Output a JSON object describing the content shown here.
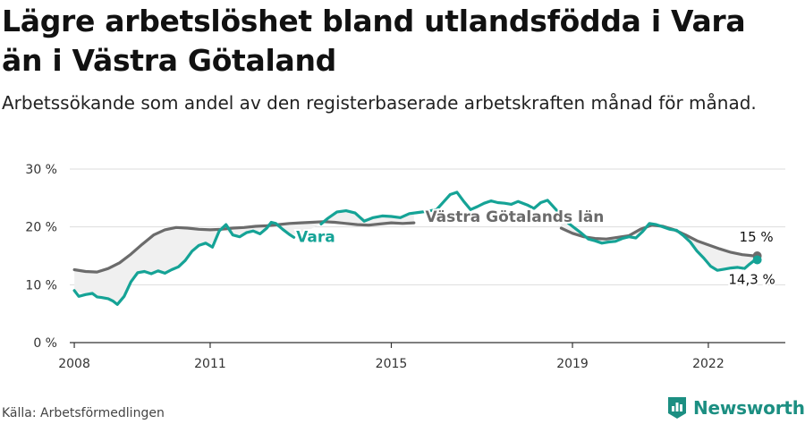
{
  "header": {
    "title": "Lägre arbetslöshet bland utlandsfödda i Vara än i Västra Götaland",
    "subtitle": "Arbetssökande som andel av den registerbaserade arbetskraften månad för månad."
  },
  "footer": {
    "source": "Källa: Arbetsförmedlingen",
    "brand": "Newsworthy"
  },
  "colors": {
    "vara": "#15a396",
    "vg": "#6b6b6b",
    "band": "#f0f0f0",
    "grid": "#dddddd",
    "axis": "#333333",
    "brand": "#1c8f82"
  },
  "icons": {
    "brand_logo": "newsworthy-logo-icon"
  },
  "chart_data": {
    "type": "line",
    "title": "Lägre arbetslöshet bland utlandsfödda i Vara än i Västra Götaland",
    "xlabel": "",
    "ylabel": "",
    "xlim": [
      2007.9,
      2023.7
    ],
    "ylim": [
      0,
      30
    ],
    "yticks": [
      0,
      10,
      20,
      30
    ],
    "ytick_labels": [
      "0 %",
      "10 %",
      "20 %",
      "30 %"
    ],
    "xticks": [
      2008,
      2011,
      2015,
      2019,
      2022
    ],
    "xtick_labels": [
      "2008",
      "2011",
      "2015",
      "2019",
      "2022"
    ],
    "grid": true,
    "shaded_between_series": true,
    "series": [
      {
        "name": "Västra Götalands län",
        "label": "Västra Götalands län",
        "end_label": "15 %",
        "points": [
          [
            2008.0,
            12.6
          ],
          [
            2008.25,
            12.3
          ],
          [
            2008.5,
            12.2
          ],
          [
            2008.75,
            12.8
          ],
          [
            2009.0,
            13.8
          ],
          [
            2009.25,
            15.3
          ],
          [
            2009.5,
            17.0
          ],
          [
            2009.75,
            18.6
          ],
          [
            2010.0,
            19.5
          ],
          [
            2010.25,
            19.9
          ],
          [
            2010.5,
            19.8
          ],
          [
            2010.75,
            19.6
          ],
          [
            2011.0,
            19.5
          ],
          [
            2011.25,
            19.6
          ],
          [
            2011.5,
            19.8
          ],
          [
            2011.75,
            19.9
          ],
          [
            2012.0,
            20.1
          ],
          [
            2012.25,
            20.2
          ],
          [
            2012.5,
            20.4
          ],
          [
            2012.75,
            20.6
          ],
          [
            2013.0,
            20.7
          ],
          [
            2013.25,
            20.8
          ],
          [
            2013.5,
            20.9
          ],
          [
            2013.75,
            20.8
          ],
          [
            2014.0,
            20.6
          ],
          [
            2014.25,
            20.4
          ],
          [
            2014.5,
            20.3
          ],
          [
            2014.75,
            20.5
          ],
          [
            2015.0,
            20.7
          ],
          [
            2015.25,
            20.6
          ],
          [
            2015.5,
            20.7
          ],
          [
            2018.75,
            19.8
          ],
          [
            2019.0,
            18.9
          ],
          [
            2019.25,
            18.3
          ],
          [
            2019.5,
            18.0
          ],
          [
            2019.75,
            17.9
          ],
          [
            2020.0,
            18.2
          ],
          [
            2020.25,
            18.5
          ],
          [
            2020.5,
            19.6
          ],
          [
            2020.75,
            20.3
          ],
          [
            2021.0,
            20.1
          ],
          [
            2021.25,
            19.5
          ],
          [
            2021.5,
            18.6
          ],
          [
            2021.75,
            17.6
          ],
          [
            2022.0,
            16.9
          ],
          [
            2022.25,
            16.2
          ],
          [
            2022.5,
            15.6
          ],
          [
            2022.75,
            15.2
          ],
          [
            2023.0,
            15.0
          ],
          [
            2023.08,
            15.0
          ]
        ]
      },
      {
        "name": "Vara",
        "label": "Vara",
        "end_label": "14,3 %",
        "points": [
          [
            2008.0,
            9.0
          ],
          [
            2008.1,
            8.0
          ],
          [
            2008.25,
            8.3
          ],
          [
            2008.4,
            8.5
          ],
          [
            2008.5,
            7.9
          ],
          [
            2008.6,
            7.8
          ],
          [
            2008.75,
            7.6
          ],
          [
            2008.85,
            7.2
          ],
          [
            2008.95,
            6.6
          ],
          [
            2009.1,
            8.0
          ],
          [
            2009.25,
            10.5
          ],
          [
            2009.4,
            12.1
          ],
          [
            2009.55,
            12.3
          ],
          [
            2009.7,
            11.9
          ],
          [
            2009.85,
            12.4
          ],
          [
            2010.0,
            12.0
          ],
          [
            2010.15,
            12.6
          ],
          [
            2010.3,
            13.1
          ],
          [
            2010.45,
            14.2
          ],
          [
            2010.6,
            15.8
          ],
          [
            2010.75,
            16.8
          ],
          [
            2010.9,
            17.2
          ],
          [
            2011.05,
            16.5
          ],
          [
            2011.2,
            19.3
          ],
          [
            2011.35,
            20.4
          ],
          [
            2011.5,
            18.6
          ],
          [
            2011.65,
            18.3
          ],
          [
            2011.8,
            19.0
          ],
          [
            2011.95,
            19.3
          ],
          [
            2012.1,
            18.8
          ],
          [
            2012.25,
            19.8
          ],
          [
            2012.35,
            20.8
          ],
          [
            2012.45,
            20.6
          ],
          [
            2012.6,
            19.6
          ],
          [
            2012.75,
            18.7
          ],
          [
            2012.85,
            18.2
          ],
          [
            2013.45,
            20.5
          ],
          [
            2013.6,
            21.5
          ],
          [
            2013.8,
            22.6
          ],
          [
            2014.0,
            22.8
          ],
          [
            2014.2,
            22.4
          ],
          [
            2014.4,
            21.0
          ],
          [
            2014.6,
            21.6
          ],
          [
            2014.8,
            21.9
          ],
          [
            2015.0,
            21.8
          ],
          [
            2015.2,
            21.6
          ],
          [
            2015.4,
            22.3
          ],
          [
            2015.6,
            22.5
          ],
          [
            2015.8,
            22.7
          ],
          [
            2016.0,
            23.0
          ],
          [
            2016.15,
            24.3
          ],
          [
            2016.3,
            25.6
          ],
          [
            2016.45,
            26.0
          ],
          [
            2016.6,
            24.4
          ],
          [
            2016.75,
            23.0
          ],
          [
            2016.9,
            23.5
          ],
          [
            2017.05,
            24.1
          ],
          [
            2017.2,
            24.5
          ],
          [
            2017.35,
            24.2
          ],
          [
            2017.5,
            24.1
          ],
          [
            2017.65,
            23.9
          ],
          [
            2017.8,
            24.4
          ],
          [
            2018.0,
            23.8
          ],
          [
            2018.15,
            23.2
          ],
          [
            2018.3,
            24.2
          ],
          [
            2018.45,
            24.6
          ],
          [
            2018.6,
            23.3
          ],
          [
            2018.75,
            22.0
          ],
          [
            2018.9,
            20.7
          ],
          [
            2019.05,
            19.8
          ],
          [
            2019.2,
            18.9
          ],
          [
            2019.35,
            17.9
          ],
          [
            2019.5,
            17.6
          ],
          [
            2019.65,
            17.2
          ],
          [
            2019.8,
            17.4
          ],
          [
            2019.95,
            17.5
          ],
          [
            2020.1,
            18.0
          ],
          [
            2020.25,
            18.3
          ],
          [
            2020.4,
            18.1
          ],
          [
            2020.55,
            19.2
          ],
          [
            2020.7,
            20.6
          ],
          [
            2020.85,
            20.4
          ],
          [
            2021.0,
            20.0
          ],
          [
            2021.15,
            19.6
          ],
          [
            2021.3,
            19.4
          ],
          [
            2021.45,
            18.5
          ],
          [
            2021.6,
            17.4
          ],
          [
            2021.75,
            15.8
          ],
          [
            2021.9,
            14.6
          ],
          [
            2022.05,
            13.2
          ],
          [
            2022.2,
            12.5
          ],
          [
            2022.35,
            12.7
          ],
          [
            2022.5,
            12.9
          ],
          [
            2022.65,
            13.0
          ],
          [
            2022.8,
            12.8
          ],
          [
            2022.9,
            13.5
          ],
          [
            2023.0,
            14.1
          ],
          [
            2023.08,
            14.3
          ]
        ]
      }
    ]
  }
}
